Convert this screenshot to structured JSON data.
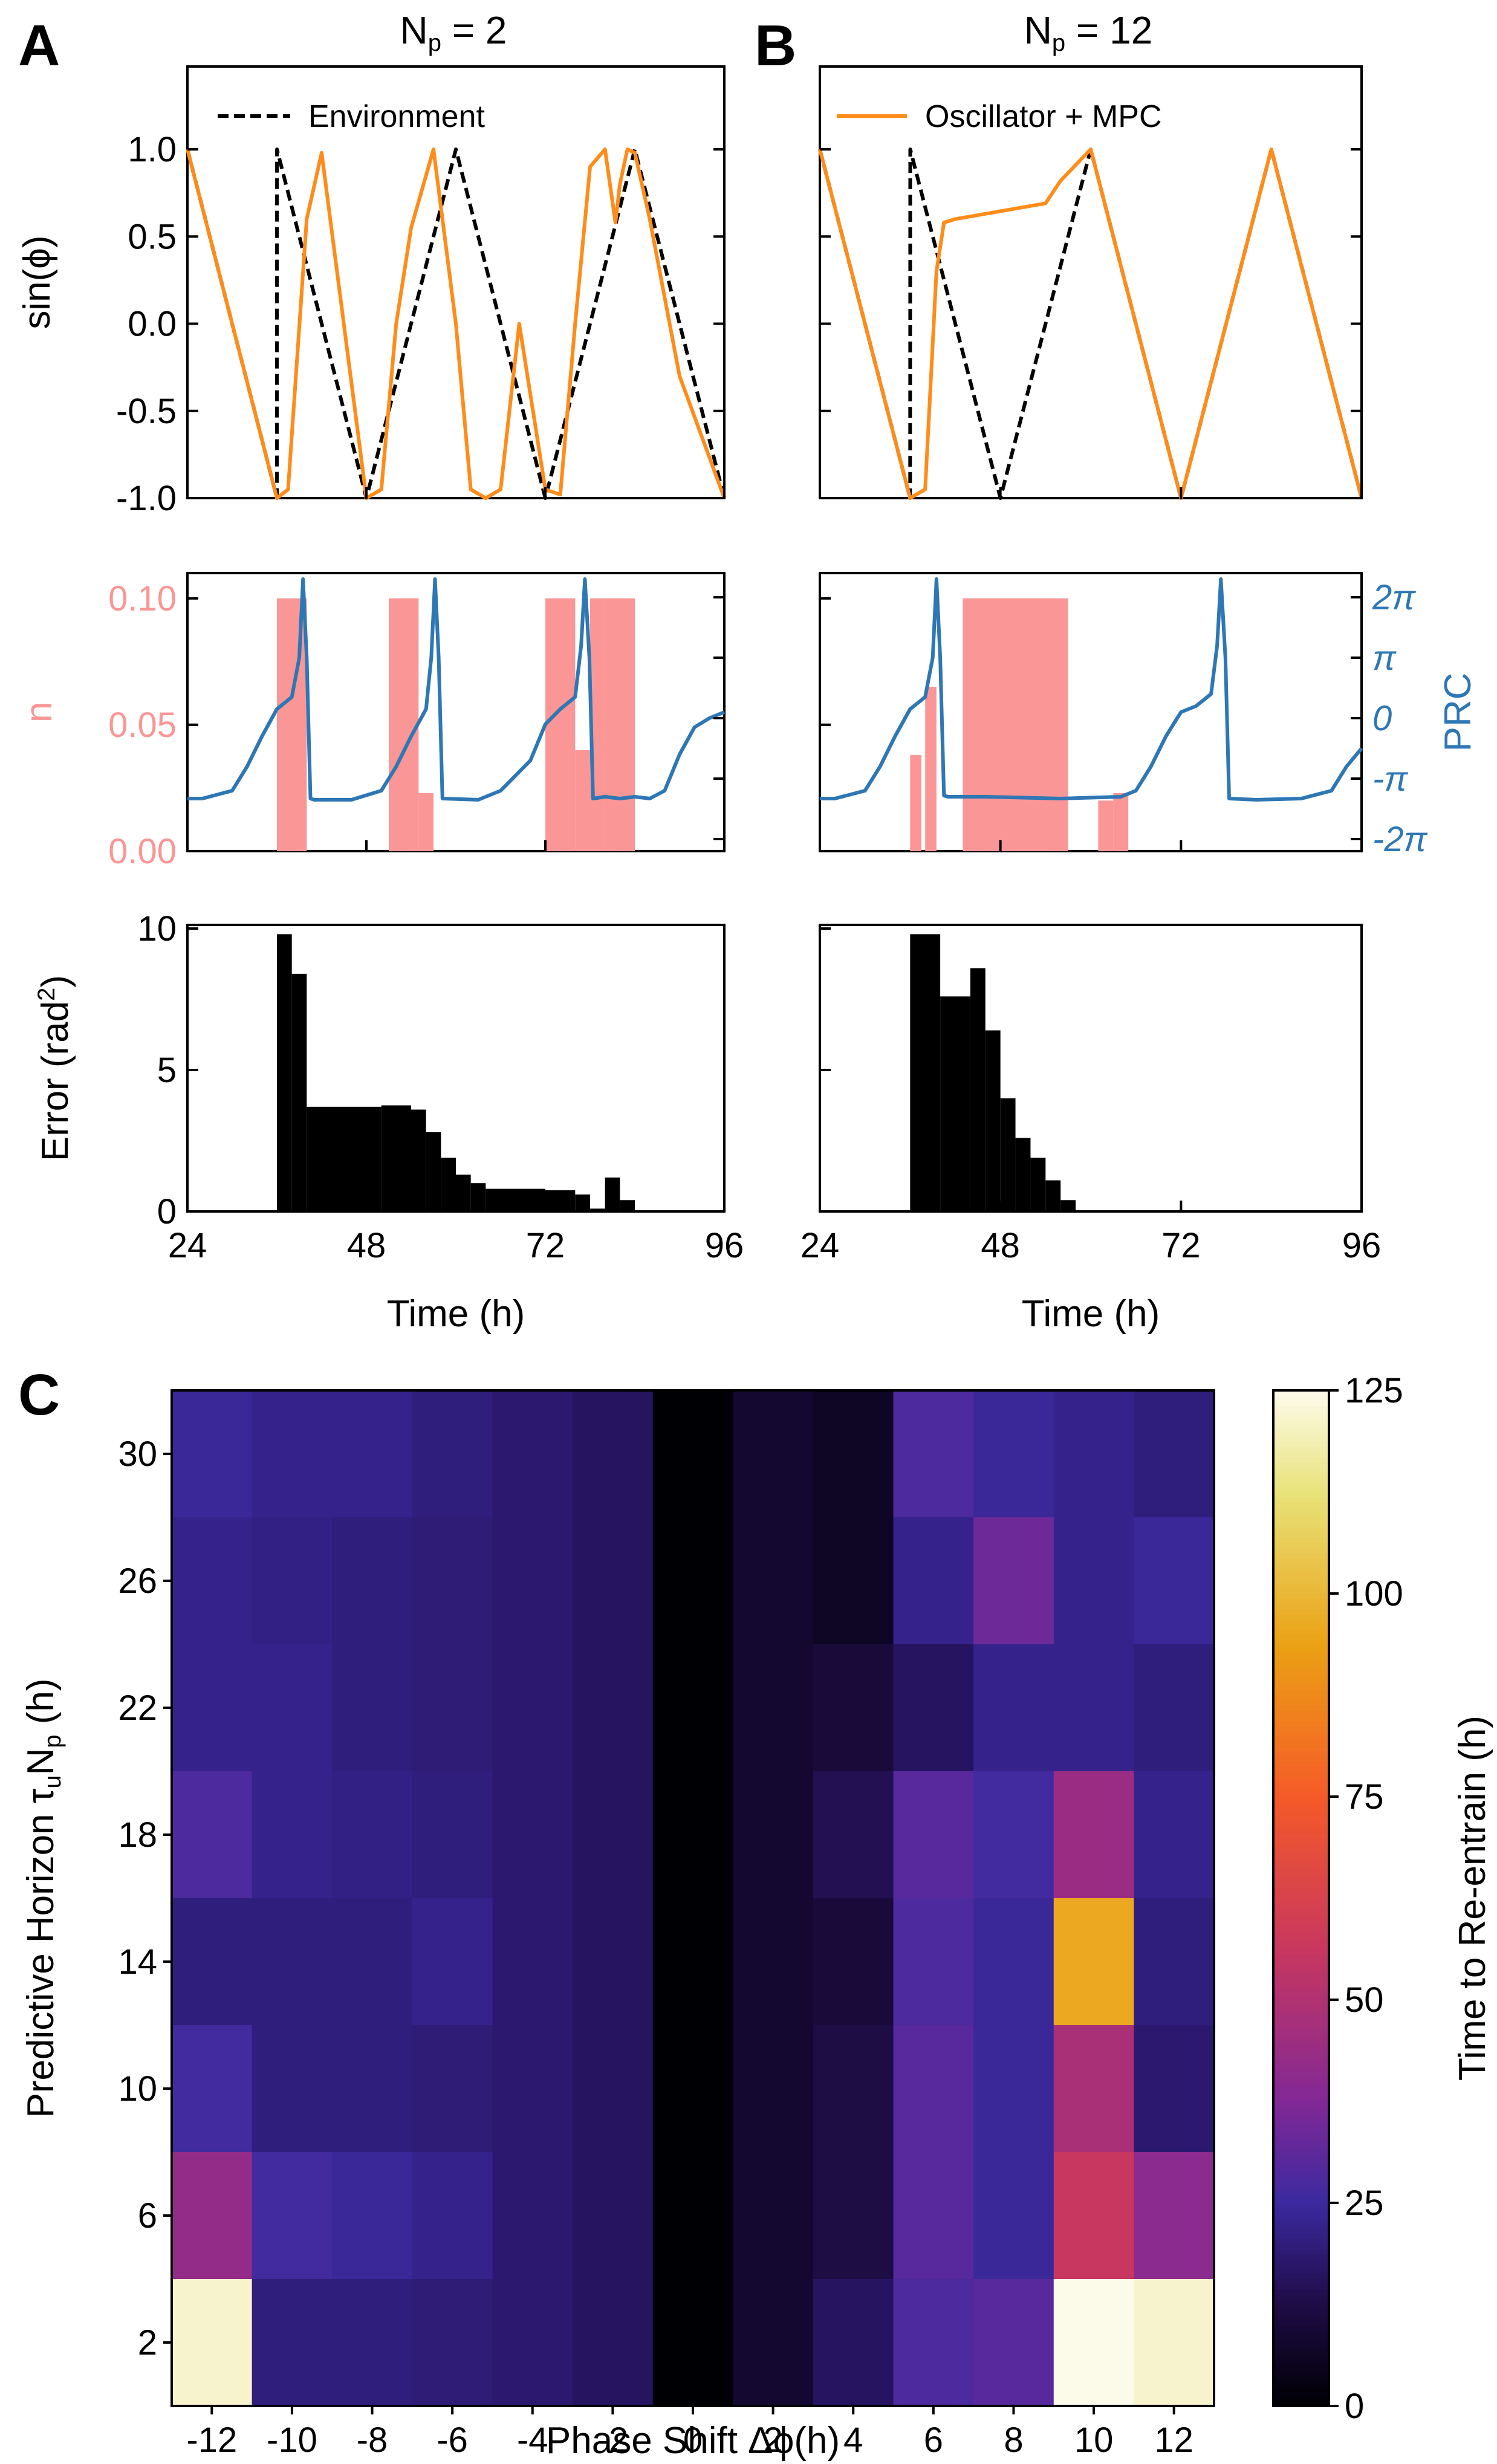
{
  "panel_labels": [
    "A",
    "B",
    "C"
  ],
  "chart_data": [
    {
      "id": "A_top",
      "type": "line",
      "title": "N_p = 2",
      "title_base": "N",
      "title_sub": "p",
      "title_rest": " = 2",
      "ylabel": "sin(ϕ)",
      "xlim": [
        24,
        96
      ],
      "ylim": [
        -1.0,
        1.0
      ],
      "yticks": [
        "-1.0",
        "-0.5",
        "0.0",
        "0.5",
        "1.0"
      ],
      "legend": {
        "label": "Environment",
        "position": "top-left",
        "style": "dashed"
      },
      "series": [
        {
          "name": "Environment",
          "color": "#000000",
          "style": "dashed",
          "x": [
            24,
            36,
            36.01,
            48,
            60,
            72,
            84,
            96
          ],
          "y": [
            1.0,
            -1.0,
            1.0,
            -1.0,
            1.0,
            -1.0,
            1.0,
            -1.0
          ]
        },
        {
          "name": "Oscillator + MPC",
          "color": "#ff8c1a",
          "style": "solid",
          "x": [
            24,
            36,
            37.5,
            40,
            42,
            48,
            50,
            52,
            54,
            57,
            60,
            62,
            64,
            66,
            68.5,
            72,
            74,
            76,
            78,
            80,
            80.5,
            81.4,
            82,
            83,
            84,
            86,
            90,
            96
          ],
          "y": [
            1.0,
            -1.0,
            -0.95,
            0.6,
            0.98,
            -1.0,
            -0.95,
            0.0,
            0.55,
            1.0,
            0.0,
            -0.95,
            -1.0,
            -0.95,
            0.0,
            -0.95,
            -0.98,
            0.0,
            0.9,
            1.0,
            0.85,
            0.58,
            0.8,
            1.0,
            0.98,
            0.6,
            -0.3,
            -1.0
          ]
        }
      ]
    },
    {
      "id": "B_top",
      "type": "line",
      "title": "N_p = 12",
      "title_base": "N",
      "title_sub": "p",
      "title_rest": " = 12",
      "xlim": [
        24,
        96
      ],
      "ylim": [
        -1.0,
        1.0
      ],
      "legend": {
        "label": "Oscillator + MPC",
        "position": "top-left",
        "style": "solid"
      },
      "series": [
        {
          "name": "Environment",
          "color": "#000000",
          "style": "dashed",
          "x": [
            24,
            36,
            36.01,
            48,
            60,
            72,
            84,
            96
          ],
          "y": [
            1.0,
            -1.0,
            1.0,
            -1.0,
            1.0,
            -1.0,
            1.0,
            -1.0
          ]
        },
        {
          "name": "Oscillator + MPC",
          "color": "#ff8c1a",
          "style": "solid",
          "x": [
            24,
            36,
            38,
            39.5,
            40.5,
            42,
            46,
            50,
            54,
            56,
            60,
            66,
            72,
            78,
            84,
            90,
            96
          ],
          "y": [
            1.0,
            -1.0,
            -0.95,
            0.3,
            0.58,
            0.6,
            0.63,
            0.66,
            0.69,
            0.82,
            1.0,
            0.0,
            -1.0,
            0.0,
            1.0,
            0.0,
            -1.0
          ]
        }
      ]
    },
    {
      "id": "A_mid",
      "type": "bar+line",
      "ylabel_left": "u",
      "ylabel_right": "PRC",
      "left_color": "#fa9696",
      "right_color": "#2e77b5",
      "xlim": [
        24,
        96
      ],
      "ylim_left": [
        0.0,
        0.11
      ],
      "yticks_left": [
        "0.00",
        "0.05",
        "0.10"
      ],
      "yticks_right": [
        "-2π",
        "-π",
        "0",
        "π",
        "2π"
      ],
      "ylim_right_pi": [
        -2,
        2
      ],
      "u_bars": [
        {
          "x0": 36,
          "x1": 40,
          "u": 0.1
        },
        {
          "x0": 51,
          "x1": 55,
          "u": 0.1
        },
        {
          "x0": 55,
          "x1": 57,
          "u": 0.023
        },
        {
          "x0": 72,
          "x1": 76,
          "u": 0.1
        },
        {
          "x0": 76,
          "x1": 78,
          "u": 0.04
        },
        {
          "x0": 78,
          "x1": 80,
          "u": 0.1
        },
        {
          "x0": 80,
          "x1": 84,
          "u": 0.1
        }
      ],
      "prc": {
        "x": [
          24,
          26,
          30,
          32,
          34,
          36,
          38,
          39,
          39.5,
          40,
          40.5,
          41,
          46,
          50,
          52,
          54,
          56,
          56.7,
          57.2,
          57.7,
          58.2,
          63,
          66,
          70,
          72,
          74,
          76,
          76.8,
          77.3,
          77.9,
          78.4,
          80,
          82,
          84,
          86,
          88,
          90,
          92,
          94,
          96
        ],
        "y": [
          -1.33,
          -1.33,
          -1.2,
          -0.8,
          -0.3,
          0.15,
          0.35,
          1.0,
          2.3,
          1.0,
          -1.33,
          -1.35,
          -1.35,
          -1.2,
          -0.8,
          -0.3,
          0.15,
          1.0,
          2.3,
          1.0,
          -1.33,
          -1.35,
          -1.2,
          -0.7,
          -0.1,
          0.15,
          0.35,
          1.2,
          2.3,
          1.0,
          -1.33,
          -1.3,
          -1.33,
          -1.3,
          -1.33,
          -1.2,
          -0.6,
          -0.15,
          0.0,
          0.1
        ]
      }
    },
    {
      "id": "B_mid",
      "type": "bar+line",
      "left_color": "#fa9696",
      "right_color": "#2e77b5",
      "xlim": [
        24,
        96
      ],
      "ylim_left": [
        0.0,
        0.11
      ],
      "yticks_left": [
        "0.00",
        "0.05",
        "0.10"
      ],
      "yticks_right": [
        "-2π",
        "-π",
        "0",
        "π",
        "2π"
      ],
      "ylim_right_pi": [
        -2,
        2
      ],
      "u_bars": [
        {
          "x0": 36,
          "x1": 37.5,
          "u": 0.038
        },
        {
          "x0": 38,
          "x1": 39.5,
          "u": 0.065
        },
        {
          "x0": 43,
          "x1": 57,
          "u": 0.1
        },
        {
          "x0": 61,
          "x1": 63,
          "u": 0.02
        },
        {
          "x0": 63,
          "x1": 65,
          "u": 0.023
        }
      ],
      "prc": {
        "x": [
          24,
          26,
          30,
          32,
          34,
          36,
          38,
          39,
          39.5,
          40,
          40.5,
          41,
          46,
          56,
          64,
          66,
          68,
          70,
          72,
          74,
          76,
          76.8,
          77.3,
          77.9,
          78.4,
          82,
          88,
          92,
          94,
          96
        ],
        "y": [
          -1.33,
          -1.33,
          -1.2,
          -0.8,
          -0.3,
          0.15,
          0.35,
          1.0,
          2.3,
          1.0,
          -1.28,
          -1.3,
          -1.3,
          -1.33,
          -1.3,
          -1.2,
          -0.8,
          -0.3,
          0.1,
          0.2,
          0.4,
          1.2,
          2.3,
          1.0,
          -1.33,
          -1.35,
          -1.33,
          -1.2,
          -0.8,
          -0.5
        ]
      }
    },
    {
      "id": "A_bottom",
      "type": "bar",
      "ylabel": "Error (rad²)",
      "ylabel_base": "Error (rad",
      "ylabel_sup": "2",
      "ylabel_rest": ")",
      "xlabel": "Time (h)",
      "xlim": [
        24,
        96
      ],
      "ylim": [
        0,
        10
      ],
      "xticks": [
        "24",
        "48",
        "72",
        "96"
      ],
      "yticks": [
        "0",
        "5",
        "10"
      ],
      "color": "#000000",
      "bars": [
        {
          "x0": 36,
          "x1": 38,
          "v": 9.8
        },
        {
          "x0": 38,
          "x1": 40,
          "v": 8.4
        },
        {
          "x0": 40,
          "x1": 50,
          "v": 3.7
        },
        {
          "x0": 50,
          "x1": 54,
          "v": 3.75
        },
        {
          "x0": 54,
          "x1": 56,
          "v": 3.6
        },
        {
          "x0": 56,
          "x1": 58,
          "v": 2.8
        },
        {
          "x0": 58,
          "x1": 60,
          "v": 1.9
        },
        {
          "x0": 60,
          "x1": 62,
          "v": 1.3
        },
        {
          "x0": 62,
          "x1": 64,
          "v": 1.0
        },
        {
          "x0": 64,
          "x1": 72,
          "v": 0.8
        },
        {
          "x0": 72,
          "x1": 76,
          "v": 0.75
        },
        {
          "x0": 76,
          "x1": 78,
          "v": 0.6
        },
        {
          "x0": 78,
          "x1": 80,
          "v": 0.1
        },
        {
          "x0": 80,
          "x1": 82,
          "v": 1.2
        },
        {
          "x0": 82,
          "x1": 84,
          "v": 0.4
        }
      ]
    },
    {
      "id": "B_bottom",
      "type": "bar",
      "xlabel": "Time (h)",
      "xlim": [
        24,
        96
      ],
      "ylim": [
        0,
        10
      ],
      "xticks": [
        "24",
        "48",
        "72",
        "96"
      ],
      "color": "#000000",
      "bars": [
        {
          "x0": 36,
          "x1": 40,
          "v": 9.8
        },
        {
          "x0": 40,
          "x1": 44,
          "v": 7.6
        },
        {
          "x0": 44,
          "x1": 46,
          "v": 8.6
        },
        {
          "x0": 46,
          "x1": 48,
          "v": 6.4
        },
        {
          "x0": 48,
          "x1": 50,
          "v": 4.0
        },
        {
          "x0": 50,
          "x1": 52,
          "v": 2.6
        },
        {
          "x0": 52,
          "x1": 54,
          "v": 1.9
        },
        {
          "x0": 54,
          "x1": 56,
          "v": 1.1
        },
        {
          "x0": 56,
          "x1": 58,
          "v": 0.4
        }
      ]
    },
    {
      "id": "C",
      "type": "heatmap",
      "xlabel": "Phase Shift Δϕ(h)",
      "ylabel": "Predictive Horizon τ_u N_p (h)",
      "ylabel_pre": "Predictive Horizon τ",
      "ylabel_sub1": "u",
      "ylabel_mid": "N",
      "ylabel_sub2": "p",
      "ylabel_post": " (h)",
      "colorbar_label": "Time to Re-entrain (h)",
      "colorbar_ticks": [
        "0",
        "25",
        "50",
        "75",
        "100",
        "125"
      ],
      "vlim": [
        0,
        125
      ],
      "x": [
        "-12",
        "-10",
        "-8",
        "-6",
        "-4",
        "-2",
        "0",
        "2",
        "4",
        "6",
        "8",
        "10",
        "12"
      ],
      "y": [
        "30",
        "26",
        "22",
        "18",
        "14",
        "10",
        "6",
        "2"
      ],
      "values": [
        [
          24,
          22,
          22,
          20,
          18,
          16,
          0,
          8,
          6,
          28,
          24,
          22,
          20
        ],
        [
          22,
          21,
          20,
          19,
          18,
          16,
          0,
          8,
          6,
          22,
          34,
          22,
          24
        ],
        [
          22,
          22,
          20,
          19,
          18,
          16,
          0,
          8,
          10,
          16,
          22,
          22,
          20
        ],
        [
          28,
          22,
          21,
          20,
          18,
          16,
          0,
          8,
          14,
          30,
          26,
          44,
          22
        ],
        [
          20,
          20,
          20,
          22,
          18,
          16,
          0,
          8,
          10,
          28,
          24,
          96,
          20
        ],
        [
          26,
          20,
          20,
          19,
          18,
          16,
          0,
          8,
          12,
          30,
          24,
          48,
          18
        ],
        [
          42,
          26,
          24,
          22,
          18,
          16,
          0,
          8,
          12,
          30,
          24,
          56,
          40
        ],
        [
          122,
          20,
          20,
          19,
          18,
          16,
          0,
          8,
          16,
          28,
          30,
          125,
          122
        ]
      ]
    }
  ]
}
